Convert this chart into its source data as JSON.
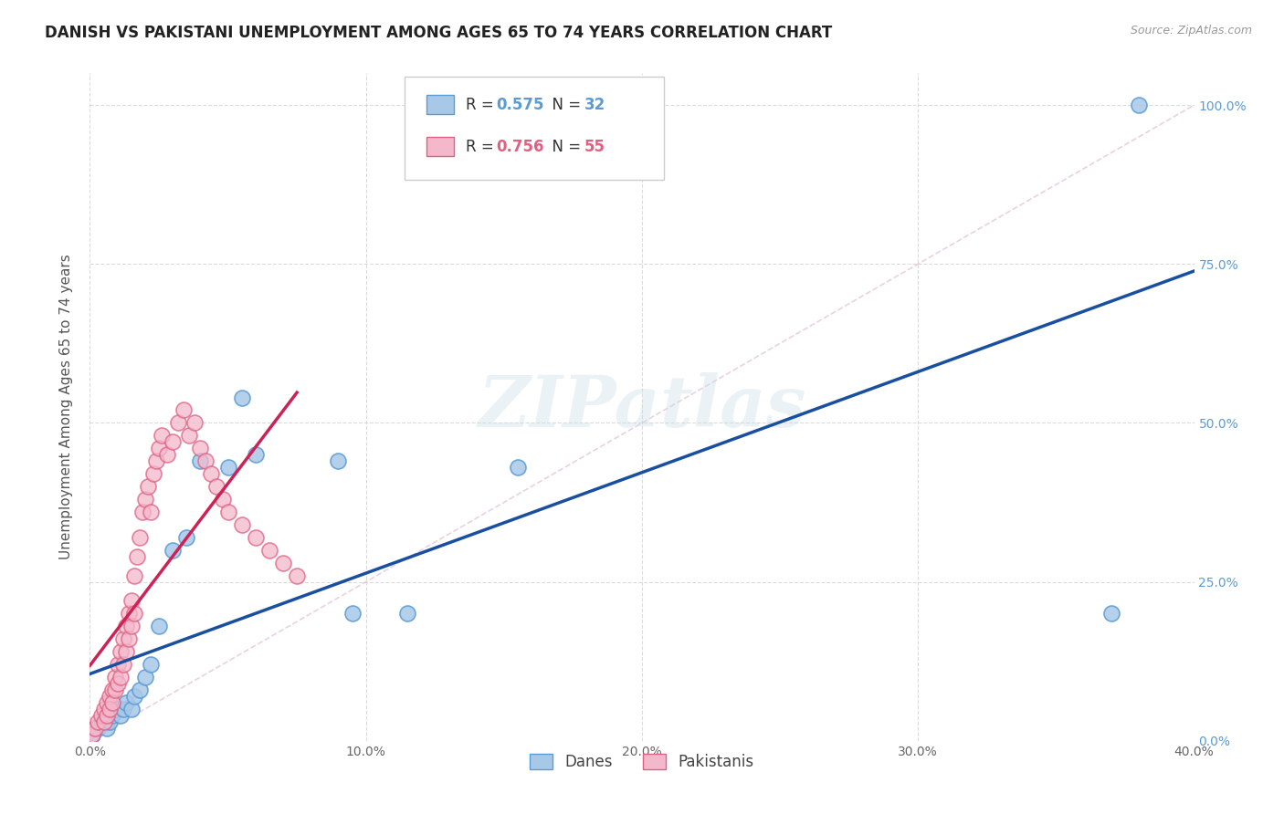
{
  "title": "DANISH VS PAKISTANI UNEMPLOYMENT AMONG AGES 65 TO 74 YEARS CORRELATION CHART",
  "source": "Source: ZipAtlas.com",
  "ylabel": "Unemployment Among Ages 65 to 74 years",
  "xlim": [
    0.0,
    0.4
  ],
  "ylim": [
    0.0,
    1.05
  ],
  "xticks": [
    0.0,
    0.1,
    0.2,
    0.3,
    0.4
  ],
  "yticks": [
    0.0,
    0.25,
    0.5,
    0.75,
    1.0
  ],
  "xtick_labels": [
    "0.0%",
    "10.0%",
    "20.0%",
    "30.0%",
    "40.0%"
  ],
  "ytick_labels": [
    "0.0%",
    "25.0%",
    "50.0%",
    "75.0%",
    "100.0%"
  ],
  "watermark": "ZIPatlas",
  "danes_x": [
    0.001,
    0.002,
    0.003,
    0.004,
    0.005,
    0.006,
    0.006,
    0.007,
    0.008,
    0.009,
    0.01,
    0.011,
    0.012,
    0.013,
    0.015,
    0.016,
    0.018,
    0.02,
    0.022,
    0.025,
    0.03,
    0.035,
    0.04,
    0.05,
    0.055,
    0.06,
    0.09,
    0.095,
    0.115,
    0.155,
    0.37,
    0.38
  ],
  "danes_y": [
    0.01,
    0.02,
    0.02,
    0.03,
    0.03,
    0.04,
    0.02,
    0.03,
    0.04,
    0.05,
    0.05,
    0.04,
    0.05,
    0.06,
    0.05,
    0.07,
    0.08,
    0.1,
    0.12,
    0.18,
    0.3,
    0.32,
    0.44,
    0.43,
    0.54,
    0.45,
    0.44,
    0.2,
    0.2,
    0.43,
    0.2,
    1.0
  ],
  "pakistanis_x": [
    0.001,
    0.002,
    0.003,
    0.004,
    0.005,
    0.005,
    0.006,
    0.006,
    0.007,
    0.007,
    0.008,
    0.008,
    0.009,
    0.009,
    0.01,
    0.01,
    0.011,
    0.011,
    0.012,
    0.012,
    0.013,
    0.013,
    0.014,
    0.014,
    0.015,
    0.015,
    0.016,
    0.016,
    0.017,
    0.018,
    0.019,
    0.02,
    0.021,
    0.022,
    0.023,
    0.024,
    0.025,
    0.026,
    0.028,
    0.03,
    0.032,
    0.034,
    0.036,
    0.038,
    0.04,
    0.042,
    0.044,
    0.046,
    0.048,
    0.05,
    0.055,
    0.06,
    0.065,
    0.07,
    0.075
  ],
  "pakistanis_y": [
    0.01,
    0.02,
    0.03,
    0.04,
    0.05,
    0.03,
    0.06,
    0.04,
    0.07,
    0.05,
    0.08,
    0.06,
    0.1,
    0.08,
    0.12,
    0.09,
    0.14,
    0.1,
    0.16,
    0.12,
    0.18,
    0.14,
    0.2,
    0.16,
    0.22,
    0.18,
    0.26,
    0.2,
    0.29,
    0.32,
    0.36,
    0.38,
    0.4,
    0.36,
    0.42,
    0.44,
    0.46,
    0.48,
    0.45,
    0.47,
    0.5,
    0.52,
    0.48,
    0.5,
    0.46,
    0.44,
    0.42,
    0.4,
    0.38,
    0.36,
    0.34,
    0.32,
    0.3,
    0.28,
    0.26
  ],
  "danes_scatter_face": "#a8c8e8",
  "danes_scatter_edge": "#5b9bd5",
  "pakistanis_scatter_face": "#f4b8cc",
  "pakistanis_scatter_edge": "#e06080",
  "trendline_danes_color": "#1a4fa0",
  "trendline_pakistanis_color": "#cc2255",
  "grid_color": "#cccccc",
  "bg_color": "#ffffff",
  "right_tick_color": "#5b9bd5",
  "title_fontsize": 12,
  "axis_label_fontsize": 11,
  "tick_fontsize": 10,
  "legend_danes_R": "0.575",
  "legend_danes_N": "32",
  "legend_pak_R": "0.756",
  "legend_pak_N": "55"
}
